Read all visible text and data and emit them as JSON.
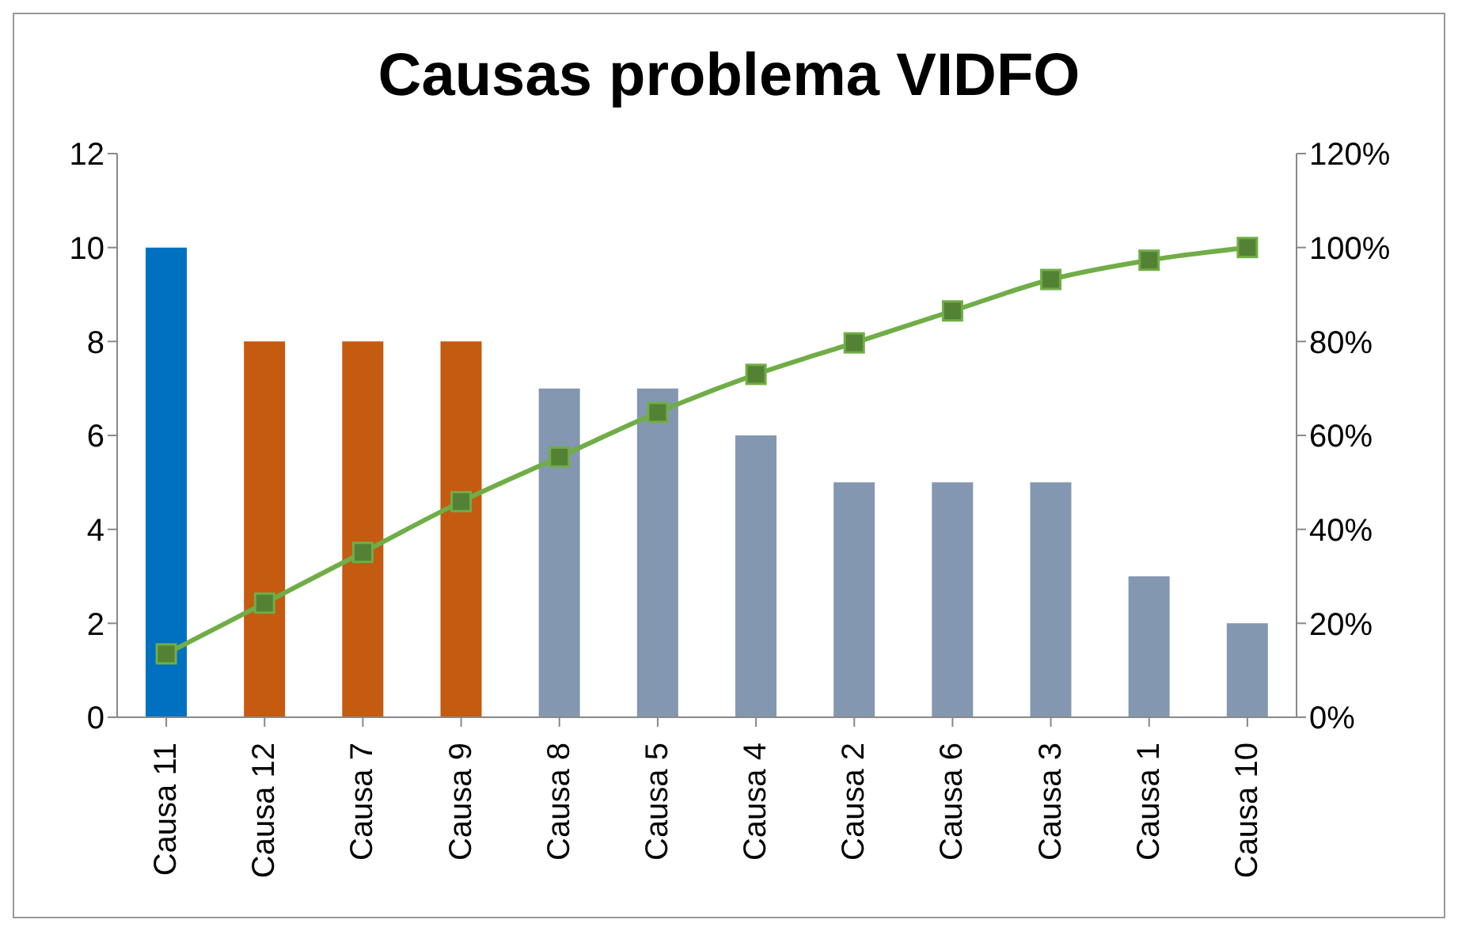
{
  "chart_data": {
    "type": "bar",
    "title": "Causas problema VIDFO",
    "categories": [
      "Causa 11",
      "Causa 12",
      "Causa 7",
      "Causa 9",
      "Causa 8",
      "Causa 5",
      "Causa 4",
      "Causa 2",
      "Causa 6",
      "Causa 3",
      "Causa 1",
      "Causa 10"
    ],
    "series": [
      {
        "colors": [
          "#0070c0",
          "#c55a11",
          "#c55a11",
          "#c55a11",
          "#8497b0",
          "#8497b0",
          "#8497b0",
          "#8497b0",
          "#8497b0",
          "#8497b0",
          "#8497b0",
          "#8497b0"
        ],
        "values": [
          10,
          8,
          8,
          8,
          7,
          7,
          6,
          5,
          5,
          5,
          3,
          2
        ]
      },
      {
        "type": "line",
        "axis": "y2",
        "color": "#70ad47",
        "marker": "square",
        "values": [
          13.5,
          24.3,
          35.1,
          45.9,
          55.4,
          64.9,
          73.0,
          79.7,
          86.5,
          93.2,
          97.3,
          100
        ]
      }
    ],
    "ylim": [
      0,
      12
    ],
    "yticks": [
      0,
      2,
      4,
      6,
      8,
      10,
      12
    ],
    "y2lim": [
      0,
      120
    ],
    "y2ticks": [
      {
        "value": 0,
        "label": "0%"
      },
      {
        "value": 20,
        "label": "20%"
      },
      {
        "value": 40,
        "label": "40%"
      },
      {
        "value": 60,
        "label": "60%"
      },
      {
        "value": 80,
        "label": "80%"
      },
      {
        "value": 100,
        "label": "100%"
      },
      {
        "value": 120,
        "label": "120%"
      }
    ],
    "grid": false,
    "legend": false
  }
}
